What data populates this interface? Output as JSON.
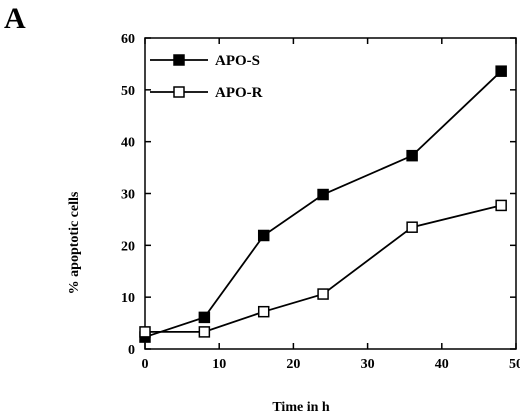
{
  "panel_label": "A",
  "chart_data": {
    "type": "line",
    "xlabel": "Time in h",
    "ylabel": "% apoptotic cells",
    "xlim": [
      0,
      50
    ],
    "ylim": [
      0,
      60
    ],
    "xticks": [
      0,
      10,
      20,
      30,
      40,
      50
    ],
    "yticks": [
      0,
      10,
      20,
      30,
      40,
      50,
      60
    ],
    "grid": false,
    "legend_position": "top-left",
    "series": [
      {
        "name": "APO-S",
        "marker": "filled-square",
        "color": "#000000",
        "x": [
          0,
          8,
          16,
          24,
          36,
          48
        ],
        "y": [
          2.3,
          6.1,
          21.9,
          29.8,
          37.3,
          53.6
        ]
      },
      {
        "name": "APO-R",
        "marker": "open-square",
        "color": "#000000",
        "x": [
          0,
          8,
          16,
          24,
          36,
          48
        ],
        "y": [
          3.3,
          3.3,
          7.2,
          10.6,
          23.5,
          27.7
        ]
      }
    ]
  }
}
